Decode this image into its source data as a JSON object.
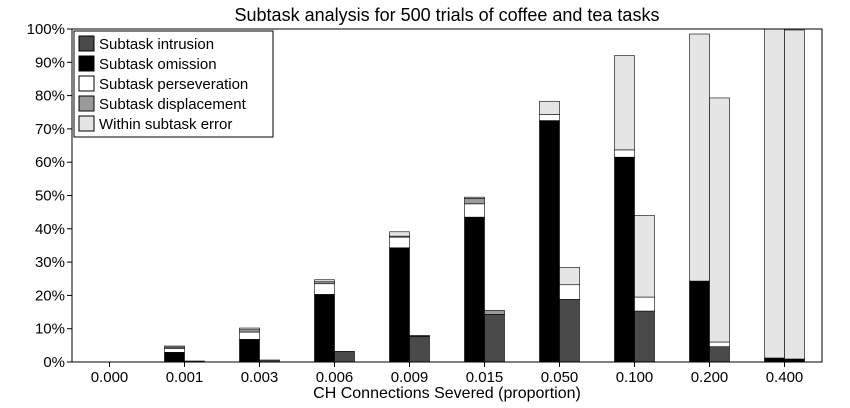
{
  "chart_data": {
    "type": "bar",
    "stacked": true,
    "title": "Subtask analysis for 500 trials of coffee and tea tasks",
    "xlabel": "CH Connections Severed (proportion)",
    "ylabel": "",
    "ylim": [
      0,
      100
    ],
    "y_unit": "%",
    "y_ticks": [
      "0%",
      "10%",
      "20%",
      "30%",
      "40%",
      "50%",
      "60%",
      "70%",
      "80%",
      "90%",
      "100%"
    ],
    "categories": [
      "0.000",
      "0.001",
      "0.003",
      "0.006",
      "0.009",
      "0.015",
      "0.050",
      "0.100",
      "0.200",
      "0.400"
    ],
    "bars_per_category": 2,
    "grid": false,
    "legend_position": "top-left",
    "series": [
      {
        "name": "Subtask intrusion",
        "color": "#4a4a4a",
        "values": [
          [
            0,
            0
          ],
          [
            0,
            0.3
          ],
          [
            0,
            0.6
          ],
          [
            0,
            3.2
          ],
          [
            0,
            7.7
          ],
          [
            0,
            14.3
          ],
          [
            0,
            18.8
          ],
          [
            0,
            15.3
          ],
          [
            0,
            4.6
          ],
          [
            0,
            0
          ]
        ]
      },
      {
        "name": "Subtask omission",
        "color": "#000000",
        "values": [
          [
            0,
            0
          ],
          [
            2.9,
            0
          ],
          [
            6.8,
            0
          ],
          [
            20.3,
            0
          ],
          [
            34.3,
            0
          ],
          [
            43.5,
            0
          ],
          [
            72.5,
            0
          ],
          [
            61.5,
            0
          ],
          [
            24.3,
            0
          ],
          [
            1.2,
            0.9
          ]
        ]
      },
      {
        "name": "Subtask perseveration",
        "color": "#ffffff",
        "values": [
          [
            0,
            0
          ],
          [
            1.2,
            0
          ],
          [
            2.2,
            0
          ],
          [
            3.2,
            0
          ],
          [
            3.2,
            0
          ],
          [
            4.0,
            0
          ],
          [
            1.8,
            4.4
          ],
          [
            2.2,
            4.2
          ],
          [
            0,
            1.4
          ],
          [
            0,
            0
          ]
        ]
      },
      {
        "name": "Subtask displacement",
        "color": "#9a9a9a",
        "values": [
          [
            0,
            0
          ],
          [
            0.4,
            0
          ],
          [
            0.7,
            0
          ],
          [
            0.6,
            0
          ],
          [
            0.3,
            0.3
          ],
          [
            1.6,
            1.2
          ],
          [
            0,
            0
          ],
          [
            0,
            0
          ],
          [
            0,
            0
          ],
          [
            0,
            0
          ]
        ]
      },
      {
        "name": "Within subtask error",
        "color": "#e5e5e5",
        "values": [
          [
            0,
            0
          ],
          [
            0.3,
            0
          ],
          [
            0.5,
            0
          ],
          [
            0.6,
            0
          ],
          [
            1.3,
            0
          ],
          [
            0.4,
            0
          ],
          [
            4.0,
            5.2
          ],
          [
            28.3,
            24.5
          ],
          [
            74.2,
            73.3
          ],
          [
            98.8,
            98.8
          ]
        ]
      }
    ]
  }
}
